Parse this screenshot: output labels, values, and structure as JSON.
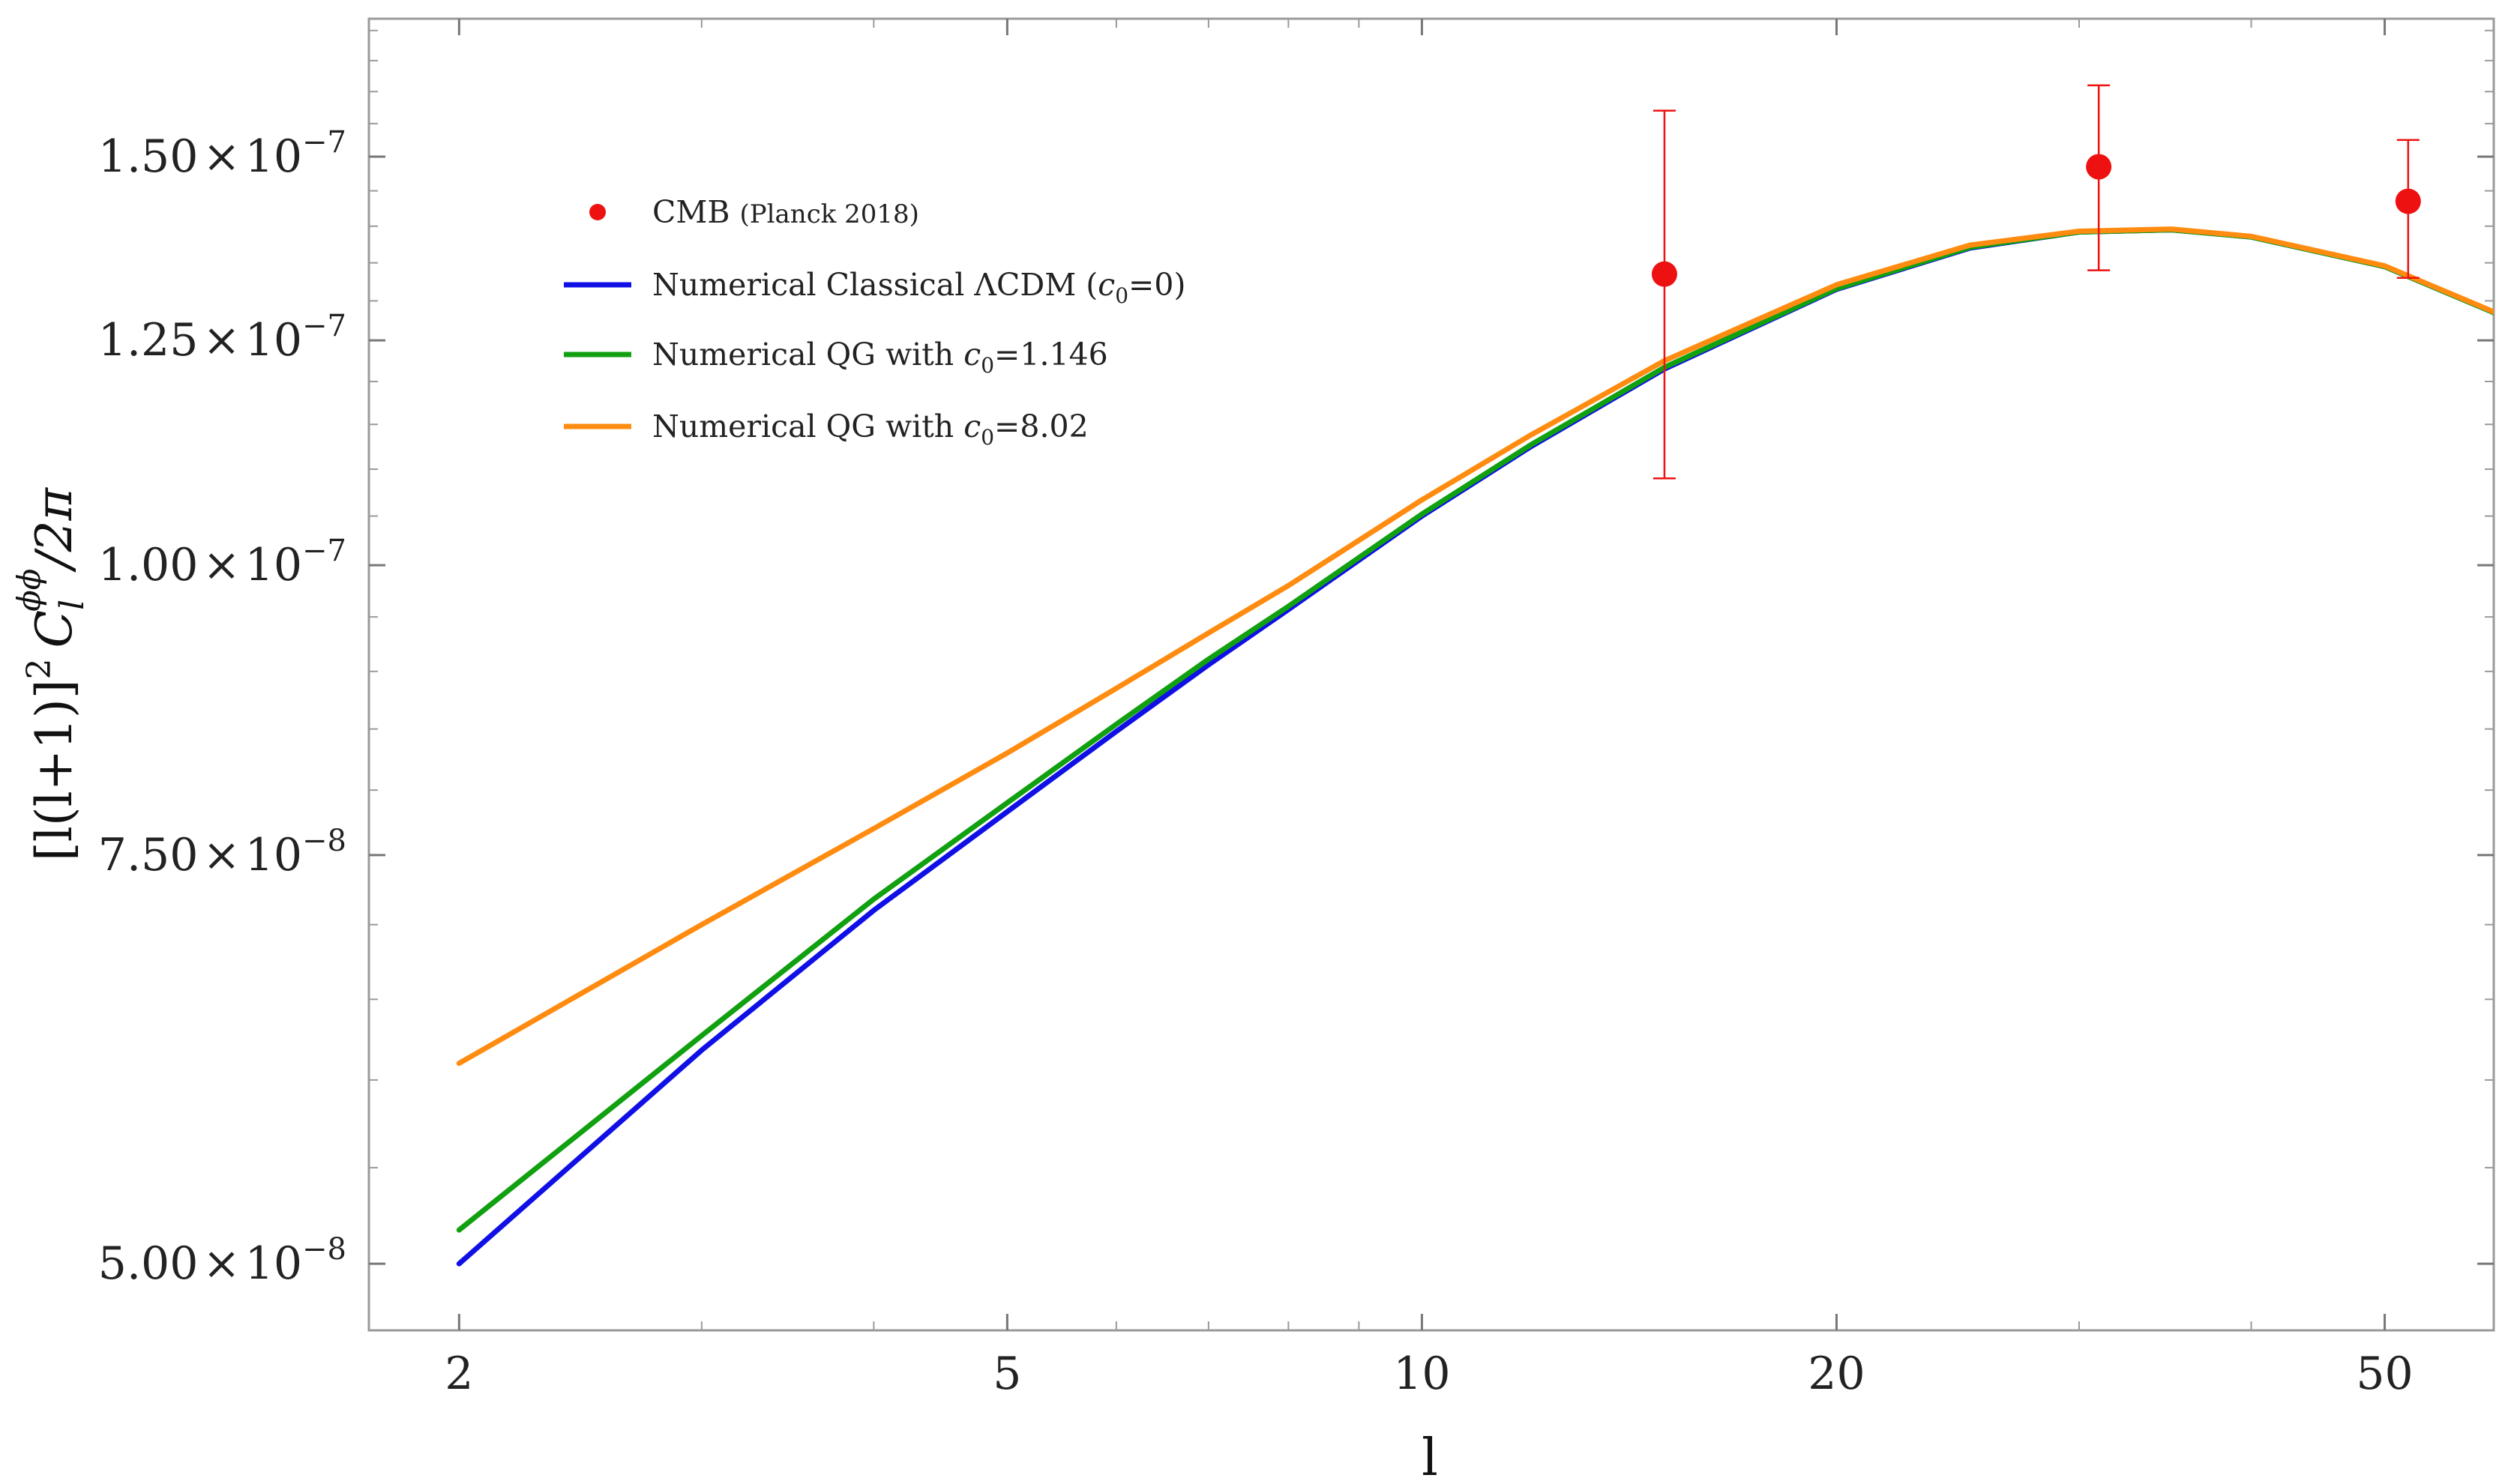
{
  "chart_data": {
    "type": "line",
    "title": "",
    "xlabel": "l",
    "ylabel": "[l(l+1)]² C_l^{φφ}/2π",
    "ylabel_parts": {
      "a": "[l(l+1)]",
      "b": "2",
      "c": "C",
      "d": "l",
      "e": "ϕϕ",
      "f": "/2π"
    },
    "x_scale": "log",
    "y_scale": "log",
    "xlim": [
      1.72,
      60
    ],
    "ylim": [
      4.68e-08,
      1.72e-07
    ],
    "grid": false,
    "legend_position": "upper-left",
    "x_ticks": [
      {
        "value": 2,
        "label": "2"
      },
      {
        "value": 5,
        "label": "5"
      },
      {
        "value": 10,
        "label": "10"
      },
      {
        "value": 20,
        "label": "20"
      },
      {
        "value": 50,
        "label": "50"
      }
    ],
    "y_ticks": [
      {
        "value": 1.5e-07,
        "mantissa": "1.50",
        "times": "×",
        "base": "10",
        "exponent": "−7"
      },
      {
        "value": 1.25e-07,
        "mantissa": "1.25",
        "times": "×",
        "base": "10",
        "exponent": "−7"
      },
      {
        "value": 1e-07,
        "mantissa": "1.00",
        "times": "×",
        "base": "10",
        "exponent": "−7"
      },
      {
        "value": 7.5e-08,
        "mantissa": "7.50",
        "times": "×",
        "base": "10",
        "exponent": "−8"
      },
      {
        "value": 5e-08,
        "mantissa": "5.00",
        "times": "×",
        "base": "10",
        "exponent": "−8"
      }
    ],
    "series": [
      {
        "name": "Numerical Classical ΛCDM (c0=0)",
        "legend": {
          "pre": "Numerical Classical ΛCDM (",
          "sym": "c",
          "sub": "0",
          "post": "=0)"
        },
        "color": "#1010e6",
        "kind": "line",
        "x": [
          2,
          3,
          4,
          5,
          6,
          7,
          8,
          10,
          12,
          15,
          20,
          25,
          30,
          35,
          40,
          50,
          60
        ],
        "y": [
          5e-08,
          6.18e-08,
          7.1e-08,
          7.83e-08,
          8.48e-08,
          9.06e-08,
          9.57e-08,
          1.05e-07,
          1.125e-07,
          1.215e-07,
          1.315e-07,
          1.37e-07,
          1.392e-07,
          1.395e-07,
          1.385e-07,
          1.345e-07,
          1.285e-07
        ]
      },
      {
        "name": "Numerical QG with c0=1.146",
        "legend": {
          "pre": "Numerical QG with ",
          "sym": "c",
          "sub": "0",
          "post": "=1.146"
        },
        "color": "#10a010",
        "kind": "line",
        "x": [
          2,
          3,
          4,
          5,
          6,
          7,
          8,
          10,
          12,
          15,
          20,
          25,
          30,
          35,
          40,
          50,
          60
        ],
        "y": [
          5.17e-08,
          6.27e-08,
          7.18e-08,
          7.9e-08,
          8.54e-08,
          9.11e-08,
          9.6e-08,
          1.052e-07,
          1.127e-07,
          1.217e-07,
          1.316e-07,
          1.371e-07,
          1.392e-07,
          1.395e-07,
          1.385e-07,
          1.345e-07,
          1.285e-07
        ]
      },
      {
        "name": "Numerical QG with c0=8.02",
        "legend": {
          "pre": "Numerical QG with ",
          "sym": "c",
          "sub": "0",
          "post": "=8.02"
        },
        "color": "#ff8c10",
        "kind": "line",
        "x": [
          2,
          3,
          4,
          5,
          6,
          7,
          8,
          10,
          12,
          15,
          20,
          25,
          30,
          35,
          40,
          50,
          60
        ],
        "y": [
          6.1e-08,
          7e-08,
          7.7e-08,
          8.3e-08,
          8.85e-08,
          9.35e-08,
          9.8e-08,
          1.067e-07,
          1.138e-07,
          1.225e-07,
          1.321e-07,
          1.374e-07,
          1.393e-07,
          1.396e-07,
          1.386e-07,
          1.346e-07,
          1.286e-07
        ]
      }
    ],
    "points": {
      "name": "CMB (Planck 2018)",
      "legend": {
        "pre": "CMB ",
        "small": "(Planck 2018)"
      },
      "color": "#ee1111",
      "kind": "errorbar",
      "x": [
        15,
        31,
        52
      ],
      "y": [
        1.335e-07,
        1.485e-07,
        1.435e-07
      ],
      "y_err_low": [
        1.09e-07,
        1.34e-07,
        1.33e-07
      ],
      "y_err_high": [
        1.57e-07,
        1.61e-07,
        1.525e-07
      ]
    }
  }
}
